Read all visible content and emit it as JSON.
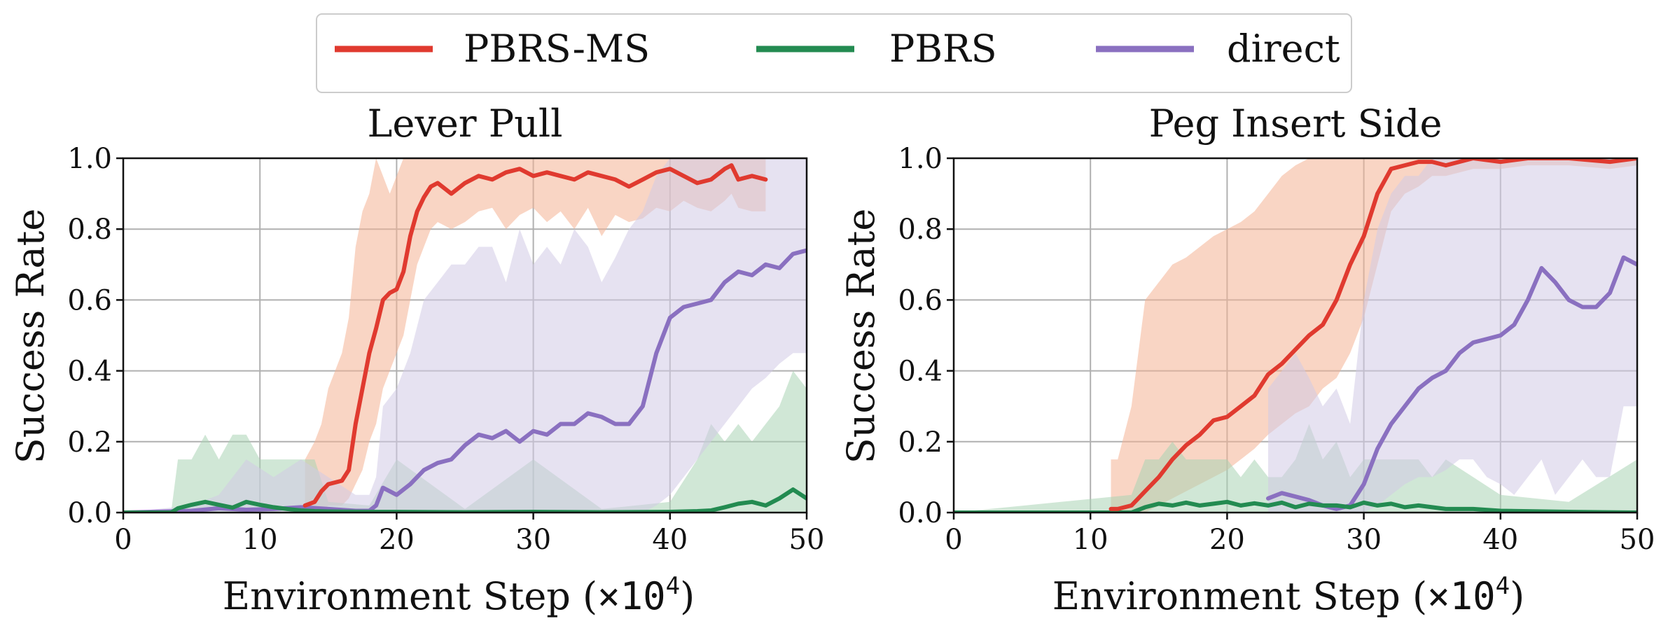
{
  "legend": {
    "entries": [
      {
        "label": "PBRS-MS",
        "color": "#e03a2f"
      },
      {
        "label": "PBRS",
        "color": "#238b51"
      },
      {
        "label": "direct",
        "color": "#8a70c0"
      }
    ],
    "placement": "top-center"
  },
  "axis_text": {
    "xlabel_prefix": "Environment Step (",
    "xlabel_unit": "×10",
    "xlabel_exp": "4",
    "xlabel_suffix": ")",
    "ylabel": "Success Rate"
  },
  "chart_data": [
    {
      "type": "line",
      "title": "Lever Pull",
      "xlabel": "Environment Step (×10^4)",
      "ylabel": "Success Rate",
      "xlim": [
        0,
        50
      ],
      "ylim": [
        0.0,
        1.0
      ],
      "xticks": [
        0,
        10,
        20,
        30,
        40,
        50
      ],
      "yticks": [
        0.0,
        0.2,
        0.4,
        0.6,
        0.8,
        1.0
      ],
      "xtick_labels": [
        "0",
        "10",
        "20",
        "30",
        "40",
        "50"
      ],
      "ytick_labels": [
        "0.0",
        "0.2",
        "0.4",
        "0.6",
        "0.8",
        "1.0"
      ],
      "grid": true,
      "series": [
        {
          "name": "PBRS-MS",
          "color": "#e03a2f",
          "band_color": "#f4b393",
          "x": [
            13.3,
            14.0,
            14.5,
            15.0,
            16.0,
            16.5,
            17.0,
            17.5,
            18.0,
            18.5,
            19.0,
            19.5,
            20.0,
            20.5,
            21.0,
            21.5,
            22.0,
            22.5,
            23.0,
            24.0,
            25.0,
            26.0,
            27.0,
            28.0,
            29.0,
            30.0,
            31.0,
            32.0,
            33.0,
            34.0,
            35.0,
            36.0,
            37.0,
            38.0,
            39.0,
            40.0,
            41.0,
            42.0,
            43.0,
            44.0,
            44.5,
            45.0,
            46.0,
            47.0
          ],
          "y": [
            0.02,
            0.03,
            0.06,
            0.08,
            0.09,
            0.12,
            0.25,
            0.35,
            0.45,
            0.52,
            0.6,
            0.62,
            0.63,
            0.68,
            0.78,
            0.85,
            0.89,
            0.92,
            0.93,
            0.9,
            0.93,
            0.95,
            0.94,
            0.96,
            0.97,
            0.95,
            0.96,
            0.95,
            0.94,
            0.96,
            0.95,
            0.94,
            0.92,
            0.94,
            0.96,
            0.97,
            0.95,
            0.93,
            0.94,
            0.97,
            0.98,
            0.94,
            0.95,
            0.94
          ],
          "lower": [
            0.0,
            0.0,
            0.0,
            0.02,
            0.02,
            0.04,
            0.08,
            0.12,
            0.2,
            0.25,
            0.35,
            0.4,
            0.45,
            0.5,
            0.6,
            0.7,
            0.75,
            0.8,
            0.82,
            0.8,
            0.82,
            0.85,
            0.86,
            0.8,
            0.84,
            0.86,
            0.82,
            0.85,
            0.8,
            0.86,
            0.78,
            0.84,
            0.82,
            0.83,
            0.86,
            0.85,
            0.88,
            0.86,
            0.85,
            0.88,
            0.9,
            0.86,
            0.85,
            0.85
          ],
          "upper": [
            0.15,
            0.2,
            0.25,
            0.35,
            0.45,
            0.55,
            0.75,
            0.85,
            0.9,
            1.0,
            0.95,
            0.9,
            0.95,
            1.0,
            1.0,
            1.0,
            1.0,
            1.0,
            1.0,
            1.0,
            1.0,
            1.0,
            1.0,
            1.0,
            1.0,
            1.0,
            1.0,
            1.0,
            1.0,
            1.0,
            1.0,
            1.0,
            1.0,
            1.0,
            1.0,
            1.0,
            1.0,
            1.0,
            1.0,
            1.0,
            1.0,
            1.0,
            1.0,
            1.0
          ]
        },
        {
          "name": "PBRS",
          "color": "#238b51",
          "band_color": "#a9d3b4",
          "x": [
            0,
            3.5,
            4.0,
            5.0,
            6.0,
            7.0,
            8.0,
            9.0,
            10.0,
            11.0,
            12.0,
            13.0,
            14.0,
            15.0,
            18.0,
            20.0,
            25.0,
            30.0,
            35.0,
            40.0,
            42.0,
            43.0,
            44.0,
            45.0,
            46.0,
            47.0,
            48.0,
            49.0,
            50.0
          ],
          "y": [
            0.0,
            0.0,
            0.012,
            0.022,
            0.03,
            0.022,
            0.014,
            0.03,
            0.022,
            0.015,
            0.01,
            0.006,
            0.004,
            0.003,
            0.002,
            0.002,
            0.001,
            0.002,
            0.001,
            0.002,
            0.004,
            0.006,
            0.015,
            0.025,
            0.03,
            0.02,
            0.04,
            0.065,
            0.04
          ],
          "lower": [
            0.0,
            0.0,
            0.0,
            0.0,
            0.0,
            0.0,
            0.0,
            0.0,
            0.0,
            0.0,
            0.0,
            0.0,
            0.0,
            0.0,
            0.0,
            0.0,
            0.0,
            0.0,
            0.0,
            0.0,
            0.0,
            0.0,
            0.0,
            0.0,
            0.0,
            0.0,
            0.0,
            0.0,
            0.0
          ],
          "upper": [
            0.0,
            0.0,
            0.15,
            0.15,
            0.22,
            0.15,
            0.22,
            0.22,
            0.15,
            0.15,
            0.15,
            0.15,
            0.15,
            0.03,
            0.02,
            0.15,
            0.01,
            0.15,
            0.01,
            0.03,
            0.15,
            0.25,
            0.2,
            0.25,
            0.2,
            0.25,
            0.3,
            0.4,
            0.35
          ]
        },
        {
          "name": "direct",
          "color": "#8a70c0",
          "band_color": "#d2cbe6",
          "x": [
            0,
            5.0,
            7.0,
            9.0,
            11.0,
            13.0,
            15.0,
            17.0,
            18.0,
            18.5,
            19.0,
            20.0,
            21.0,
            22.0,
            23.0,
            24.0,
            25.0,
            26.0,
            27.0,
            28.0,
            29.0,
            30.0,
            31.0,
            32.0,
            33.0,
            34.0,
            35.0,
            36.0,
            37.0,
            38.0,
            39.0,
            40.0,
            41.0,
            42.0,
            43.0,
            44.0,
            45.0,
            46.0,
            47.0,
            48.0,
            49.0,
            50.0
          ],
          "y": [
            0.0,
            0.005,
            0.012,
            0.008,
            0.01,
            0.015,
            0.01,
            0.005,
            0.005,
            0.02,
            0.07,
            0.05,
            0.08,
            0.12,
            0.14,
            0.15,
            0.19,
            0.22,
            0.21,
            0.23,
            0.2,
            0.23,
            0.22,
            0.25,
            0.25,
            0.28,
            0.27,
            0.25,
            0.25,
            0.3,
            0.45,
            0.55,
            0.58,
            0.59,
            0.6,
            0.65,
            0.68,
            0.67,
            0.7,
            0.69,
            0.73,
            0.74
          ],
          "lower": [
            0.0,
            0.0,
            0.0,
            0.0,
            0.0,
            0.0,
            0.0,
            0.0,
            0.0,
            0.0,
            0.0,
            0.0,
            0.0,
            0.0,
            0.0,
            0.0,
            0.0,
            0.0,
            0.0,
            0.0,
            0.0,
            0.0,
            0.0,
            0.0,
            0.0,
            0.0,
            0.0,
            0.0,
            0.0,
            0.0,
            0.02,
            0.05,
            0.1,
            0.15,
            0.2,
            0.25,
            0.3,
            0.35,
            0.38,
            0.42,
            0.45,
            0.45
          ],
          "upper": [
            0.0,
            0.02,
            0.05,
            0.15,
            0.1,
            0.15,
            0.1,
            0.05,
            0.05,
            0.1,
            0.3,
            0.35,
            0.45,
            0.6,
            0.65,
            0.7,
            0.7,
            0.75,
            0.75,
            0.65,
            0.8,
            0.7,
            0.75,
            0.7,
            0.8,
            0.75,
            0.65,
            0.72,
            0.8,
            0.85,
            0.95,
            1.0,
            1.0,
            1.0,
            1.0,
            1.0,
            1.0,
            1.0,
            1.0,
            1.0,
            1.0,
            1.0
          ]
        }
      ]
    },
    {
      "type": "line",
      "title": "Peg Insert Side",
      "xlabel": "Environment Step (×10^4)",
      "ylabel": "Success Rate",
      "xlim": [
        0,
        50
      ],
      "ylim": [
        0.0,
        1.0
      ],
      "xticks": [
        0,
        10,
        20,
        30,
        40,
        50
      ],
      "yticks": [
        0.0,
        0.2,
        0.4,
        0.6,
        0.8,
        1.0
      ],
      "xtick_labels": [
        "0",
        "10",
        "20",
        "30",
        "40",
        "50"
      ],
      "ytick_labels": [
        "0.0",
        "0.2",
        "0.4",
        "0.6",
        "0.8",
        "1.0"
      ],
      "grid": true,
      "series": [
        {
          "name": "PBRS-MS",
          "color": "#e03a2f",
          "band_color": "#f4b393",
          "x": [
            11.5,
            12.0,
            13.0,
            14.0,
            15.0,
            16.0,
            17.0,
            18.0,
            19.0,
            20.0,
            21.0,
            22.0,
            23.0,
            24.0,
            25.0,
            26.0,
            27.0,
            28.0,
            29.0,
            30.0,
            31.0,
            32.0,
            33.0,
            34.0,
            35.0,
            36.0,
            38.0,
            40.0,
            42.0,
            45.0,
            48.0,
            50.0
          ],
          "y": [
            0.01,
            0.01,
            0.02,
            0.06,
            0.1,
            0.15,
            0.19,
            0.22,
            0.26,
            0.27,
            0.3,
            0.33,
            0.39,
            0.42,
            0.46,
            0.5,
            0.53,
            0.6,
            0.7,
            0.78,
            0.9,
            0.97,
            0.98,
            0.99,
            0.99,
            0.98,
            1.0,
            0.99,
            1.0,
            1.0,
            0.99,
            1.0
          ],
          "lower": [
            0.0,
            0.0,
            0.0,
            0.0,
            0.02,
            0.04,
            0.06,
            0.08,
            0.1,
            0.12,
            0.15,
            0.18,
            0.22,
            0.25,
            0.28,
            0.3,
            0.35,
            0.38,
            0.45,
            0.55,
            0.7,
            0.85,
            0.9,
            0.92,
            0.95,
            0.95,
            0.97,
            0.97,
            0.98,
            0.98,
            0.97,
            0.98
          ],
          "upper": [
            0.15,
            0.15,
            0.3,
            0.6,
            0.65,
            0.7,
            0.72,
            0.75,
            0.78,
            0.8,
            0.82,
            0.85,
            0.9,
            0.95,
            0.98,
            1.0,
            1.0,
            1.0,
            1.0,
            1.0,
            1.0,
            1.0,
            1.0,
            1.0,
            1.0,
            1.0,
            1.0,
            1.0,
            1.0,
            1.0,
            1.0,
            1.0
          ]
        },
        {
          "name": "PBRS",
          "color": "#238b51",
          "band_color": "#a9d3b4",
          "x": [
            0,
            13.0,
            14.0,
            15.0,
            16.0,
            17.0,
            18.0,
            19.0,
            20.0,
            21.0,
            22.0,
            23.0,
            24.0,
            25.0,
            26.0,
            27.0,
            28.0,
            29.0,
            30.0,
            31.0,
            32.0,
            33.0,
            34.0,
            35.0,
            36.0,
            38.0,
            40.0,
            45.0,
            50.0
          ],
          "y": [
            0.0,
            0.0,
            0.015,
            0.025,
            0.02,
            0.028,
            0.02,
            0.025,
            0.03,
            0.02,
            0.026,
            0.02,
            0.028,
            0.015,
            0.025,
            0.02,
            0.02,
            0.015,
            0.028,
            0.02,
            0.025,
            0.015,
            0.02,
            0.015,
            0.01,
            0.01,
            0.005,
            0.002,
            0.0
          ],
          "lower": [
            0.0,
            0.0,
            0.0,
            0.0,
            0.0,
            0.0,
            0.0,
            0.0,
            0.0,
            0.0,
            0.0,
            0.0,
            0.0,
            0.0,
            0.0,
            0.0,
            0.0,
            0.0,
            0.0,
            0.0,
            0.0,
            0.0,
            0.0,
            0.0,
            0.0,
            0.0,
            0.0,
            0.0,
            0.0
          ],
          "upper": [
            0.0,
            0.05,
            0.15,
            0.15,
            0.2,
            0.15,
            0.15,
            0.15,
            0.15,
            0.1,
            0.15,
            0.1,
            0.1,
            0.15,
            0.25,
            0.15,
            0.2,
            0.1,
            0.15,
            0.15,
            0.15,
            0.15,
            0.15,
            0.1,
            0.15,
            0.1,
            0.05,
            0.03,
            0.15
          ]
        },
        {
          "name": "direct",
          "color": "#8a70c0",
          "band_color": "#d2cbe6",
          "x": [
            23.0,
            24.0,
            25.0,
            26.0,
            27.0,
            28.0,
            29.0,
            30.0,
            31.0,
            32.0,
            33.0,
            34.0,
            35.0,
            36.0,
            37.0,
            38.0,
            39.0,
            40.0,
            41.0,
            42.0,
            43.0,
            44.0,
            45.0,
            46.0,
            47.0,
            48.0,
            49.0,
            50.0
          ],
          "y": [
            0.04,
            0.055,
            0.045,
            0.035,
            0.02,
            0.01,
            0.02,
            0.08,
            0.18,
            0.25,
            0.3,
            0.35,
            0.38,
            0.4,
            0.45,
            0.48,
            0.49,
            0.5,
            0.53,
            0.6,
            0.69,
            0.65,
            0.6,
            0.58,
            0.58,
            0.62,
            0.72,
            0.7
          ],
          "lower": [
            0.0,
            0.0,
            0.0,
            0.0,
            0.0,
            0.0,
            0.0,
            0.0,
            0.02,
            0.05,
            0.08,
            0.1,
            0.1,
            0.12,
            0.15,
            0.15,
            0.1,
            0.08,
            0.05,
            0.1,
            0.15,
            0.05,
            0.1,
            0.15,
            0.1,
            0.1,
            0.3,
            0.3
          ],
          "upper": [
            0.35,
            0.4,
            0.45,
            0.38,
            0.3,
            0.35,
            0.25,
            0.6,
            0.8,
            0.9,
            0.95,
            0.95,
            1.0,
            1.0,
            1.0,
            1.0,
            1.0,
            1.0,
            1.0,
            1.0,
            1.0,
            1.0,
            1.0,
            1.0,
            1.0,
            1.0,
            1.0,
            1.0
          ]
        }
      ]
    }
  ]
}
